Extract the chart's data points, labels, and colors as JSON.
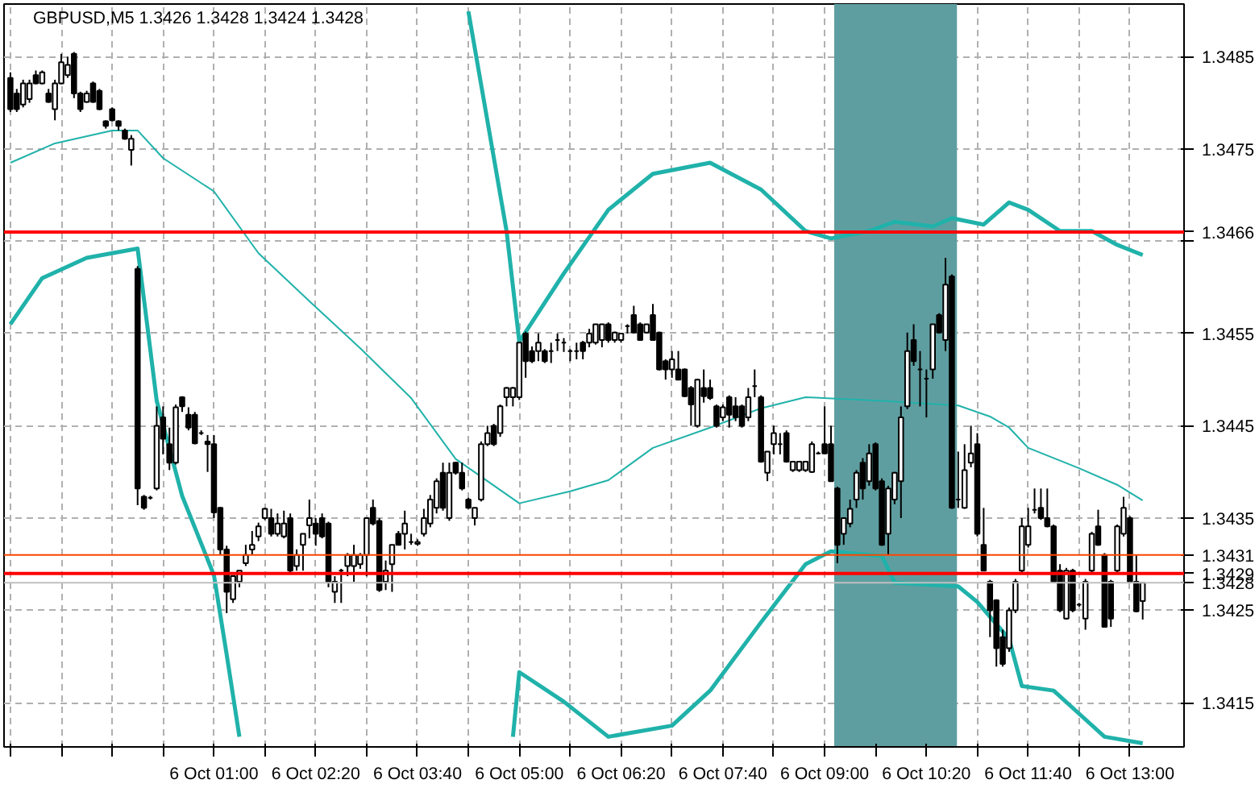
{
  "chart_data": {
    "type": "candlestick",
    "title": "GBPUSD,M5  1.3426 1.3428 1.3424 1.3428",
    "categories": [
      null,
      null,
      null,
      null,
      null,
      null,
      null,
      null,
      null,
      null,
      null,
      null,
      null,
      null,
      null,
      null,
      null,
      null,
      null,
      null,
      null,
      null,
      null,
      null,
      null,
      null,
      null,
      null,
      null,
      null,
      null,
      null,
      "6 Oct 01:00",
      null,
      null,
      null,
      null,
      null,
      null,
      null,
      null,
      null,
      null,
      null,
      null,
      null,
      null,
      null,
      "6 Oct 02:20",
      null,
      null,
      null,
      null,
      null,
      null,
      null,
      null,
      null,
      null,
      null,
      null,
      null,
      null,
      null,
      "6 Oct 03:40",
      null,
      null,
      null,
      null,
      null,
      null,
      null,
      null,
      null,
      null,
      null,
      null,
      null,
      null,
      null,
      "6 Oct 05:00",
      null,
      null,
      null,
      null,
      null,
      null,
      null,
      null,
      null,
      null,
      null,
      null,
      null,
      null,
      null,
      "6 Oct 06:20",
      null,
      null,
      null,
      null,
      null,
      null,
      null,
      null,
      null,
      null,
      null,
      null,
      null,
      null,
      null,
      "6 Oct 07:40",
      null,
      null,
      null,
      null,
      null,
      null,
      null,
      null,
      null,
      null,
      null,
      null,
      null,
      null,
      null,
      "6 Oct 09:00",
      null,
      null,
      null,
      null,
      null,
      null,
      null,
      null,
      null,
      null,
      null,
      null,
      null,
      null,
      null,
      "6 Oct 10:20",
      null,
      null,
      null,
      null,
      null,
      null,
      null,
      null,
      null,
      null,
      null,
      null,
      null,
      null,
      null,
      "6 Oct 11:40",
      null,
      null,
      null,
      null,
      null,
      null,
      null,
      null,
      null,
      null,
      null,
      null,
      null,
      null,
      null,
      "6 Oct 13:00",
      null,
      null
    ],
    "ohlc": [
      [
        1.34827,
        1.34833,
        1.3479,
        1.34793
      ],
      [
        1.3481,
        1.34815,
        1.3479,
        1.34793
      ],
      [
        1.34798,
        1.34825,
        1.34795,
        1.34821
      ],
      [
        1.34804,
        1.34825,
        1.348,
        1.34821
      ],
      [
        1.3483,
        1.34835,
        1.3482,
        1.34821
      ],
      [
        1.34821,
        1.34835,
        1.3482,
        1.34833
      ],
      [
        1.3481,
        1.34815,
        1.348,
        1.34801
      ],
      [
        1.34793,
        1.34825,
        1.34781,
        1.34821
      ],
      [
        1.34821,
        1.34853,
        1.3482,
        1.34844
      ],
      [
        1.3483,
        1.3485,
        1.34827,
        1.34841
      ],
      [
        1.34853,
        1.34855,
        1.34805,
        1.3481
      ],
      [
        1.3481,
        1.34812,
        1.3479,
        1.34793
      ],
      [
        1.34801,
        1.34813,
        1.348,
        1.3481
      ],
      [
        1.34821,
        1.34823,
        1.348,
        1.34801
      ],
      [
        1.34813,
        1.34815,
        1.34792,
        1.34793
      ],
      [
        1.3478,
        1.34781,
        1.34772,
        1.34775
      ],
      [
        1.34793,
        1.34795,
        1.3478,
        1.34781
      ],
      [
        1.3478,
        1.34781,
        1.3477,
        1.34775
      ],
      [
        1.3477,
        1.34772,
        1.3476,
        1.34761
      ],
      [
        1.34749,
        1.34765,
        1.34732,
        1.34761
      ],
      [
        1.3462,
        1.34623,
        1.34364,
        1.34382
      ],
      [
        1.34373,
        1.34375,
        1.34359,
        1.34361
      ],
      [
        1.34372,
        1.34374,
        1.3437,
        1.34372
      ],
      [
        1.34382,
        1.34471,
        1.3438,
        1.3445
      ],
      [
        1.34459,
        1.34471,
        1.34419,
        1.34436
      ],
      [
        1.3443,
        1.34448,
        1.34402,
        1.3441
      ],
      [
        1.3441,
        1.34473,
        1.34408,
        1.3447
      ],
      [
        1.34481,
        1.34482,
        1.34465,
        1.34471
      ],
      [
        1.34462,
        1.3447,
        1.34445,
        1.34448
      ],
      [
        1.34462,
        1.34465,
        1.3443,
        1.34431
      ],
      [
        1.34442,
        1.34445,
        1.3444,
        1.34442
      ],
      [
        1.34433,
        1.3444,
        1.344,
        1.3443
      ],
      [
        1.3443,
        1.3444,
        1.3435,
        1.34356
      ],
      [
        1.34361,
        1.34362,
        1.3431,
        1.34316
      ],
      [
        1.34316,
        1.3432,
        1.34247,
        1.3427
      ],
      [
        1.34262,
        1.34287,
        1.34258,
        1.34287
      ],
      [
        1.34281,
        1.34293,
        1.34275,
        1.34293
      ],
      [
        1.34301,
        1.34321,
        1.34298,
        1.3431
      ],
      [
        1.34316,
        1.34336,
        1.3431,
        1.34321
      ],
      [
        1.3433,
        1.34345,
        1.34325,
        1.34341
      ],
      [
        1.3435,
        1.34361,
        1.34348,
        1.3436
      ],
      [
        1.3435,
        1.3436,
        1.3433,
        1.34333
      ],
      [
        1.34333,
        1.34355,
        1.3433,
        1.34344
      ],
      [
        1.3433,
        1.34358,
        1.34328,
        1.34344
      ],
      [
        1.3435,
        1.34355,
        1.3429,
        1.34293
      ],
      [
        1.34298,
        1.34316,
        1.34293,
        1.3431
      ],
      [
        1.34321,
        1.34333,
        1.34293,
        1.34333
      ],
      [
        1.34342,
        1.3437,
        1.34328,
        1.3435
      ],
      [
        1.34344,
        1.3435,
        1.3432,
        1.34333
      ],
      [
        1.3435,
        1.34355,
        1.34328,
        1.3433
      ],
      [
        1.34344,
        1.34346,
        1.34275,
        1.34281
      ],
      [
        1.3427,
        1.34287,
        1.34258,
        1.34281
      ],
      [
        1.34293,
        1.34295,
        1.34258,
        1.34293
      ],
      [
        1.34298,
        1.34312,
        1.34287,
        1.3431
      ],
      [
        1.34298,
        1.34321,
        1.34281,
        1.3431
      ],
      [
        1.343,
        1.34312,
        1.34295,
        1.3431
      ],
      [
        1.3431,
        1.3435,
        1.34287,
        1.3435
      ],
      [
        1.34361,
        1.3437,
        1.34342,
        1.34344
      ],
      [
        1.34347,
        1.3435,
        1.3427,
        1.34272
      ],
      [
        1.34281,
        1.34304,
        1.34272,
        1.34293
      ],
      [
        1.343,
        1.34321,
        1.3427,
        1.34321
      ],
      [
        1.34333,
        1.34336,
        1.34321,
        1.34321
      ],
      [
        1.34333,
        1.34358,
        1.34316,
        1.34344
      ],
      [
        1.34324,
        1.34333,
        1.34321,
        1.34324
      ],
      [
        1.34322,
        1.34327,
        1.3432,
        1.34324
      ],
      [
        1.34333,
        1.3436,
        1.3433,
        1.3435
      ],
      [
        1.34344,
        1.34375,
        1.3434,
        1.3437
      ],
      [
        1.34361,
        1.34393,
        1.34355,
        1.3439
      ],
      [
        1.34399,
        1.3441,
        1.34358,
        1.34361
      ],
      [
        1.3435,
        1.3441,
        1.34347,
        1.34399
      ],
      [
        1.3441,
        1.34411,
        1.34397,
        1.34399
      ],
      [
        1.34399,
        1.3441,
        1.3438,
        1.34382
      ],
      [
        1.3437,
        1.34372,
        1.3436,
        1.34361
      ],
      [
        1.3435,
        1.34361,
        1.34342,
        1.34361
      ],
      [
        1.3437,
        1.34433,
        1.34368,
        1.3443
      ],
      [
        1.3443,
        1.3445,
        1.34428,
        1.34442
      ],
      [
        1.3445,
        1.34452,
        1.34428,
        1.3443
      ],
      [
        1.34442,
        1.34473,
        1.34438,
        1.34471
      ],
      [
        1.34481,
        1.34492,
        1.34471,
        1.34491
      ],
      [
        1.34481,
        1.34492,
        1.34471,
        1.34491
      ],
      [
        1.34481,
        1.3454,
        1.34478,
        1.3454
      ],
      [
        1.3455,
        1.34552,
        1.34502,
        1.3452
      ],
      [
        1.34531,
        1.34536,
        1.34518,
        1.3452
      ],
      [
        1.34531,
        1.3455,
        1.3452,
        1.3454
      ],
      [
        1.34531,
        1.34533,
        1.34518,
        1.3452
      ],
      [
        1.34531,
        1.3454,
        1.34518,
        1.34531
      ],
      [
        1.34543,
        1.3455,
        1.34531,
        1.34543
      ],
      [
        1.3454,
        1.34545,
        1.3453,
        1.3454
      ],
      [
        1.34531,
        1.34533,
        1.3452,
        1.34531
      ],
      [
        1.34531,
        1.3454,
        1.34522,
        1.34531
      ],
      [
        1.3454,
        1.34542,
        1.34522,
        1.34531
      ],
      [
        1.3454,
        1.34555,
        1.34535,
        1.3455
      ],
      [
        1.3454,
        1.3456,
        1.34538,
        1.3456
      ],
      [
        1.34543,
        1.3456,
        1.34535,
        1.3456
      ],
      [
        1.3456,
        1.34562,
        1.3454,
        1.34543
      ],
      [
        1.34543,
        1.34552,
        1.3454,
        1.34551
      ],
      [
        1.34543,
        1.3455,
        1.3454,
        1.3455
      ],
      [
        1.34558,
        1.3456,
        1.3455,
        1.34558
      ],
      [
        1.3457,
        1.3458,
        1.3455,
        1.34551
      ],
      [
        1.3456,
        1.34562,
        1.34543,
        1.34543
      ],
      [
        1.34551,
        1.3456,
        1.3455,
        1.3456
      ],
      [
        1.3457,
        1.34582,
        1.34542,
        1.34543
      ],
      [
        1.34551,
        1.34552,
        1.3451,
        1.34511
      ],
      [
        1.3452,
        1.34522,
        1.345,
        1.34511
      ],
      [
        1.34511,
        1.34531,
        1.34502,
        1.34522
      ],
      [
        1.34511,
        1.34531,
        1.345,
        1.345
      ],
      [
        1.34511,
        1.34512,
        1.34481,
        1.34482
      ],
      [
        1.34491,
        1.34493,
        1.3445,
        1.34473
      ],
      [
        1.3445,
        1.34501,
        1.34448,
        1.345
      ],
      [
        1.34491,
        1.34511,
        1.34475,
        1.34482
      ],
      [
        1.34491,
        1.345,
        1.34478,
        1.3448
      ],
      [
        1.34471,
        1.34473,
        1.34448,
        1.3445
      ],
      [
        1.34459,
        1.34473,
        1.34455,
        1.3447
      ],
      [
        1.34481,
        1.34483,
        1.34448,
        1.34462
      ],
      [
        1.34471,
        1.34481,
        1.34455,
        1.34459
      ],
      [
        1.34471,
        1.34473,
        1.34448,
        1.3445
      ],
      [
        1.34459,
        1.34491,
        1.34455,
        1.34481
      ],
      [
        1.34493,
        1.34511,
        1.34481,
        1.34493
      ],
      [
        1.34481,
        1.34483,
        1.3441,
        1.34411
      ],
      [
        1.34399,
        1.34422,
        1.3439,
        1.34422
      ],
      [
        1.3443,
        1.3445,
        1.34419,
        1.34442
      ],
      [
        1.3443,
        1.34442,
        1.34419,
        1.3443
      ],
      [
        1.34442,
        1.34445,
        1.3441,
        1.34411
      ],
      [
        1.34402,
        1.34412,
        1.344,
        1.34411
      ],
      [
        1.34402,
        1.34412,
        1.344,
        1.34411
      ],
      [
        1.34402,
        1.34412,
        1.344,
        1.34411
      ],
      [
        1.344,
        1.34433,
        1.34399,
        1.3443
      ],
      [
        1.3442,
        1.34422,
        1.34419,
        1.3442
      ],
      [
        1.3443,
        1.34471,
        1.34419,
        1.3442
      ],
      [
        1.3443,
        1.3445,
        1.3439,
        1.3439
      ],
      [
        1.34382,
        1.34384,
        1.34301,
        1.34321
      ],
      [
        1.34333,
        1.3435,
        1.34321,
        1.3435
      ],
      [
        1.34344,
        1.3437,
        1.3434,
        1.3436
      ],
      [
        1.3437,
        1.34402,
        1.34361,
        1.34399
      ],
      [
        1.3441,
        1.34415,
        1.3437,
        1.34382
      ],
      [
        1.3439,
        1.3443,
        1.34385,
        1.3442
      ],
      [
        1.3443,
        1.34432,
        1.3438,
        1.34382
      ],
      [
        1.3439,
        1.34393,
        1.3432,
        1.34321
      ],
      [
        1.34333,
        1.34385,
        1.3431,
        1.34382
      ],
      [
        1.3437,
        1.344,
        1.34365,
        1.34399
      ],
      [
        1.3439,
        1.34471,
        1.3435,
        1.34459
      ],
      [
        1.34471,
        1.34551,
        1.34468,
        1.34531
      ],
      [
        1.34543,
        1.3456,
        1.34515,
        1.3452
      ],
      [
        1.34511,
        1.34531,
        1.34471,
        1.34511
      ],
      [
        1.34501,
        1.34511,
        1.34459,
        1.34501
      ],
      [
        1.34511,
        1.3456,
        1.34501,
        1.3456
      ],
      [
        1.3457,
        1.34572,
        1.3455,
        1.34551
      ],
      [
        1.34543,
        1.34632,
        1.34531,
        1.34603
      ],
      [
        1.34612,
        1.34614,
        1.3436,
        1.34361
      ],
      [
        1.3437,
        1.34422,
        1.34361,
        1.3437
      ],
      [
        1.34361,
        1.3443,
        1.3436,
        1.34402
      ],
      [
        1.3441,
        1.3445,
        1.34405,
        1.3442
      ],
      [
        1.3443,
        1.34442,
        1.3433,
        1.34333
      ],
      [
        1.34321,
        1.34361,
        1.34293,
        1.34293
      ],
      [
        1.34281,
        1.34283,
        1.34221,
        1.3425
      ],
      [
        1.34261,
        1.34262,
        1.34189,
        1.34209
      ],
      [
        1.34221,
        1.34229,
        1.34189,
        1.34192
      ],
      [
        1.34209,
        1.34253,
        1.34205,
        1.3425
      ],
      [
        1.3425,
        1.34284,
        1.34247,
        1.34281
      ],
      [
        1.34293,
        1.3435,
        1.3429,
        1.34341
      ],
      [
        1.34321,
        1.34361,
        1.34318,
        1.34341
      ],
      [
        1.34359,
        1.34382,
        1.34355,
        1.34359
      ],
      [
        1.34361,
        1.34382,
        1.34348,
        1.3435
      ],
      [
        1.3435,
        1.34382,
        1.3434,
        1.34341
      ],
      [
        1.34341,
        1.34343,
        1.3428,
        1.34281
      ],
      [
        1.34293,
        1.343,
        1.34248,
        1.3425
      ],
      [
        1.34241,
        1.34296,
        1.3424,
        1.34293
      ],
      [
        1.34293,
        1.34295,
        1.34248,
        1.3425
      ],
      [
        1.34256,
        1.34258,
        1.34254,
        1.34256
      ],
      [
        1.34241,
        1.34284,
        1.34229,
        1.34281
      ],
      [
        1.34293,
        1.34335,
        1.3429,
        1.34333
      ],
      [
        1.34341,
        1.34359,
        1.3432,
        1.34321
      ],
      [
        1.3431,
        1.34312,
        1.34232,
        1.34232
      ],
      [
        1.34281,
        1.34283,
        1.34232,
        1.34241
      ],
      [
        1.34293,
        1.34343,
        1.3429,
        1.34341
      ],
      [
        1.34333,
        1.34373,
        1.3433,
        1.34361
      ],
      [
        1.3435,
        1.34352,
        1.3428,
        1.34281
      ],
      [
        1.34281,
        1.3431,
        1.34248,
        1.34249
      ],
      [
        1.3426,
        1.3428,
        1.3424,
        1.3428
      ]
    ],
    "series": [
      {
        "type": "line",
        "color": "#20b2aa",
        "values": [
          1.3456,
          null,
          null,
          null,
          null,
          1.3461,
          null,
          null,
          null,
          null,
          null,
          null,
          1.34632,
          null,
          null,
          null,
          null,
          null,
          null,
          null,
          1.34642,
          null,
          null,
          1.34477,
          null,
          null,
          null,
          1.34374,
          null,
          null,
          null,
          null,
          1.34288,
          null,
          1.34202,
          null,
          1.34113,
          null,
          null,
          null,
          null,
          null,
          null,
          null,
          null,
          null,
          null,
          null,
          null,
          null,
          null,
          null,
          null,
          null,
          null,
          null,
          null,
          null,
          null,
          null,
          null,
          null,
          null,
          null,
          null,
          null,
          null,
          null,
          null,
          null,
          null,
          null,
          null,
          null,
          null,
          null,
          null,
          null,
          null,
          null,
          null,
          null,
          null,
          null,
          null,
          null,
          null,
          null,
          null,
          null,
          null,
          null,
          null,
          null,
          null,
          null,
          null,
          null,
          null,
          null,
          null,
          null,
          null,
          null,
          null,
          null,
          null,
          null,
          null,
          null,
          null,
          null,
          null,
          null,
          null,
          null,
          null,
          null,
          null,
          null,
          null,
          null,
          null,
          null,
          null,
          null,
          null,
          null,
          null,
          null,
          null,
          null,
          null,
          null,
          null,
          null,
          null,
          null,
          null,
          null,
          null,
          null,
          null,
          null,
          null,
          null,
          null,
          null,
          null,
          null,
          null,
          null,
          null,
          null,
          null,
          null,
          null,
          null,
          null,
          null,
          null,
          null,
          null,
          null,
          null,
          null,
          null,
          null,
          null,
          null,
          null,
          null,
          null,
          null,
          null,
          null,
          null,
          null,
          null
        ]
      },
      {
        "type": "line",
        "color": "#20b2aa",
        "values": [
          1.34735,
          null,
          null,
          null,
          null,
          null,
          null,
          1.34756,
          null,
          null,
          null,
          null,
          null,
          null,
          null,
          null,
          1.3477,
          null,
          null,
          null,
          1.3477,
          null,
          null,
          null,
          1.3474,
          null,
          null,
          null,
          null,
          null,
          null,
          null,
          1.34704,
          null,
          null,
          null,
          null,
          null,
          null,
          1.34637,
          null,
          null,
          null,
          null,
          null,
          null,
          null,
          1.34585,
          null,
          null,
          null,
          null,
          null,
          null,
          null,
          1.34534,
          null,
          null,
          null,
          null,
          null,
          null,
          null,
          1.3448,
          null,
          null,
          null,
          null,
          null,
          null,
          1.34414,
          null,
          null,
          null,
          null,
          null,
          null,
          null,
          null,
          null,
          1.34366,
          null,
          null,
          null,
          null,
          null,
          null,
          null,
          1.34379,
          null,
          null,
          null,
          null,
          null,
          1.34391,
          null,
          null,
          null,
          null,
          null,
          null,
          1.34426,
          null,
          null,
          null,
          null,
          null,
          null,
          null,
          null,
          1.34448,
          null,
          null,
          null,
          null,
          null,
          null,
          null,
          1.34469,
          null,
          null,
          null,
          null,
          null,
          null,
          1.34481,
          null,
          null,
          null,
          null,
          null,
          null,
          null,
          null,
          null,
          null,
          null,
          1.34477,
          null,
          null,
          null,
          null,
          null,
          null,
          null,
          null,
          null,
          null,
          null,
          1.34472,
          null,
          null,
          null,
          null,
          1.3446,
          null,
          null,
          1.34448,
          null,
          null,
          1.34426,
          null,
          null,
          null,
          null,
          null,
          null,
          null,
          1.34404,
          null,
          null,
          null,
          null,
          null,
          1.34386,
          null,
          null,
          null,
          1.34369
        ]
      },
      {
        "type": "line",
        "color": "#20b2aa",
        "values": [
          null,
          null,
          null,
          null,
          null,
          null,
          null,
          null,
          null,
          null,
          null,
          null,
          null,
          null,
          null,
          null,
          null,
          null,
          null,
          null,
          null,
          null,
          null,
          null,
          null,
          null,
          null,
          null,
          null,
          null,
          null,
          null,
          null,
          null,
          null,
          null,
          null,
          null,
          null,
          null,
          null,
          null,
          null,
          null,
          null,
          null,
          null,
          null,
          null,
          null,
          null,
          null,
          null,
          null,
          null,
          null,
          null,
          null,
          null,
          null,
          null,
          null,
          null,
          null,
          null,
          null,
          null,
          null,
          null,
          null,
          null,
          null,
          null,
          null,
          null,
          null,
          null,
          null,
          null,
          1.34113,
          1.34183,
          null,
          null,
          null,
          null,
          null,
          null,
          1.34151,
          null,
          null,
          null,
          null,
          null,
          null,
          1.34113,
          null,
          null,
          null,
          null,
          null,
          null,
          null,
          null,
          null,
          1.34125,
          null,
          null,
          null,
          null,
          null,
          1.34163,
          null,
          null,
          null,
          null,
          null,
          null,
          null,
          1.34237,
          null,
          null,
          null,
          null,
          null,
          null,
          1.343,
          null,
          null,
          null,
          1.34314,
          null,
          null,
          null,
          null,
          null,
          null,
          null,
          1.34309,
          null,
          1.3428,
          null,
          null,
          null,
          null,
          null,
          null,
          null,
          null,
          null,
          1.34276,
          null,
          null,
          1.34259,
          null,
          null,
          null,
          null,
          1.34219,
          null,
          1.34168,
          null,
          null,
          null,
          null,
          1.34163,
          null,
          null,
          null,
          1.34138,
          null,
          null,
          null,
          1.34113,
          null,
          null,
          null,
          null,
          null,
          1.34106
        ]
      },
      {
        "type": "line",
        "color": "#20b2aa",
        "values": [
          null,
          null,
          null,
          null,
          null,
          null,
          null,
          null,
          null,
          null,
          null,
          null,
          null,
          null,
          null,
          null,
          null,
          null,
          null,
          null,
          null,
          null,
          null,
          null,
          null,
          null,
          null,
          null,
          null,
          null,
          null,
          null,
          null,
          null,
          null,
          null,
          null,
          null,
          null,
          null,
          null,
          null,
          null,
          null,
          null,
          null,
          null,
          null,
          null,
          null,
          null,
          null,
          null,
          null,
          null,
          null,
          null,
          null,
          null,
          null,
          null,
          null,
          null,
          null,
          null,
          null,
          null,
          null,
          null,
          null,
          null,
          null,
          1.34899,
          null,
          null,
          null,
          null,
          null,
          1.34661,
          null,
          1.34541,
          null,
          null,
          null,
          null,
          null,
          null,
          1.34615,
          null,
          null,
          null,
          null,
          null,
          null,
          1.34684,
          null,
          null,
          null,
          null,
          null,
          null,
          1.34723,
          null,
          null,
          null,
          null,
          null,
          null,
          null,
          null,
          1.34735,
          null,
          null,
          null,
          null,
          null,
          null,
          null,
          1.34706,
          null,
          null,
          null,
          null,
          null,
          null,
          1.34661,
          null,
          null,
          null,
          1.34653,
          null,
          null,
          null,
          null,
          null,
          1.34661,
          null,
          null,
          null,
          1.34671,
          null,
          null,
          null,
          null,
          null,
          1.34666,
          null,
          null,
          1.34675,
          null,
          null,
          null,
          null,
          1.34668,
          null,
          null,
          null,
          1.34692,
          null,
          null,
          1.34684,
          null,
          null,
          null,
          null,
          1.34661,
          null,
          null,
          null,
          null,
          1.34661,
          null,
          null,
          null,
          1.34646,
          null,
          null,
          null,
          1.34635
        ]
      }
    ],
    "ylim": [
      1.34102,
      1.34907
    ],
    "yticks": [
      1.3415,
      1.3425,
      1.3435,
      1.3445,
      1.3455,
      {
        "value": 1.3465,
        "label": null
      },
      1.3475,
      1.3485
    ],
    "grid": true,
    "ref_lines": [
      {
        "axis": "y",
        "value": 1.3466,
        "label": "1.3466",
        "color": "#ff0000"
      },
      {
        "axis": "y",
        "value": 1.3431,
        "label": "1.3431",
        "color": "#ff4500"
      },
      {
        "axis": "y",
        "value": 1.3429,
        "label": "1.3429",
        "color": "#ff0000"
      },
      {
        "axis": "y",
        "value": 1.3428,
        "label": "1.3428",
        "color": "#c0c0c0"
      }
    ]
  }
}
